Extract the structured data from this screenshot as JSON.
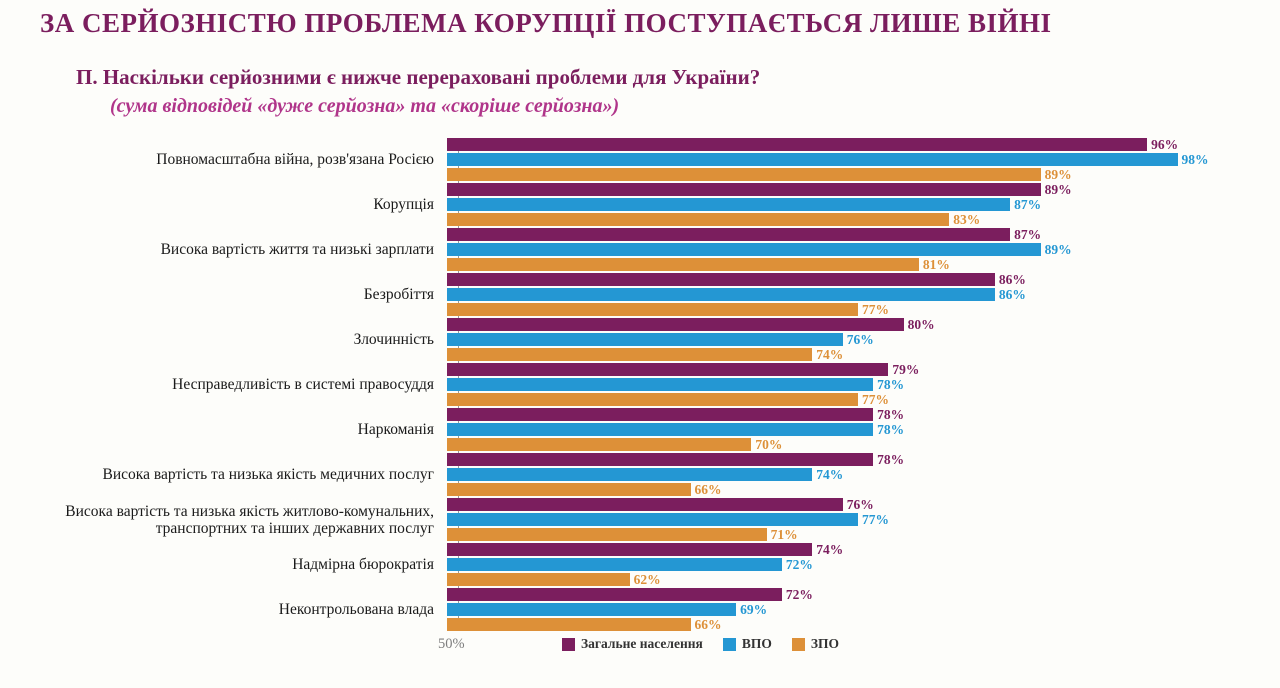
{
  "header": {
    "title": "ЗА СЕРЙОЗНІСТЮ ПРОБЛЕМА КОРУПЦІЇ ПОСТУПАЄТЬСЯ ЛИШЕ ВІЙНІ",
    "question": "П. Наскільки серйозними є нижче перераховані проблеми для України?",
    "note": "(сума відповідей «дуже серйозна» та «скоріше серйозна»)"
  },
  "colors": {
    "general": "#7b1e5e",
    "vpo": "#2497d3",
    "zpo": "#dd9038",
    "title": "#7b1e5e",
    "note": "#b0358a"
  },
  "chart_data": {
    "type": "bar",
    "orientation": "horizontal",
    "xlim": [
      50,
      100
    ],
    "axis_tick_label": "50%",
    "grid": false,
    "legend_position": "bottom",
    "categories": [
      "Повномасштабна війна, розв'язана Росією",
      "Корупція",
      "Висока вартість життя та низькі зарплати",
      "Безробіття",
      "Злочинність",
      "Несправедливість в системі правосуддя",
      "Наркоманія",
      "Висока вартість та низька якість медичних послуг",
      "Висока вартість та низька якість житлово-комунальних, транспортних та інших державних послуг",
      "Надмірна бюрократія",
      "Неконтрольована влада"
    ],
    "series": [
      {
        "key": "general",
        "name": "Загальне населення",
        "values": [
          96,
          89,
          87,
          86,
          80,
          79,
          78,
          78,
          76,
          74,
          72
        ]
      },
      {
        "key": "vpo",
        "name": "ВПО",
        "values": [
          98,
          87,
          89,
          86,
          76,
          78,
          78,
          74,
          77,
          72,
          69
        ]
      },
      {
        "key": "zpo",
        "name": "ЗПО",
        "values": [
          89,
          83,
          81,
          77,
          74,
          77,
          70,
          66,
          71,
          62,
          66
        ]
      }
    ]
  }
}
